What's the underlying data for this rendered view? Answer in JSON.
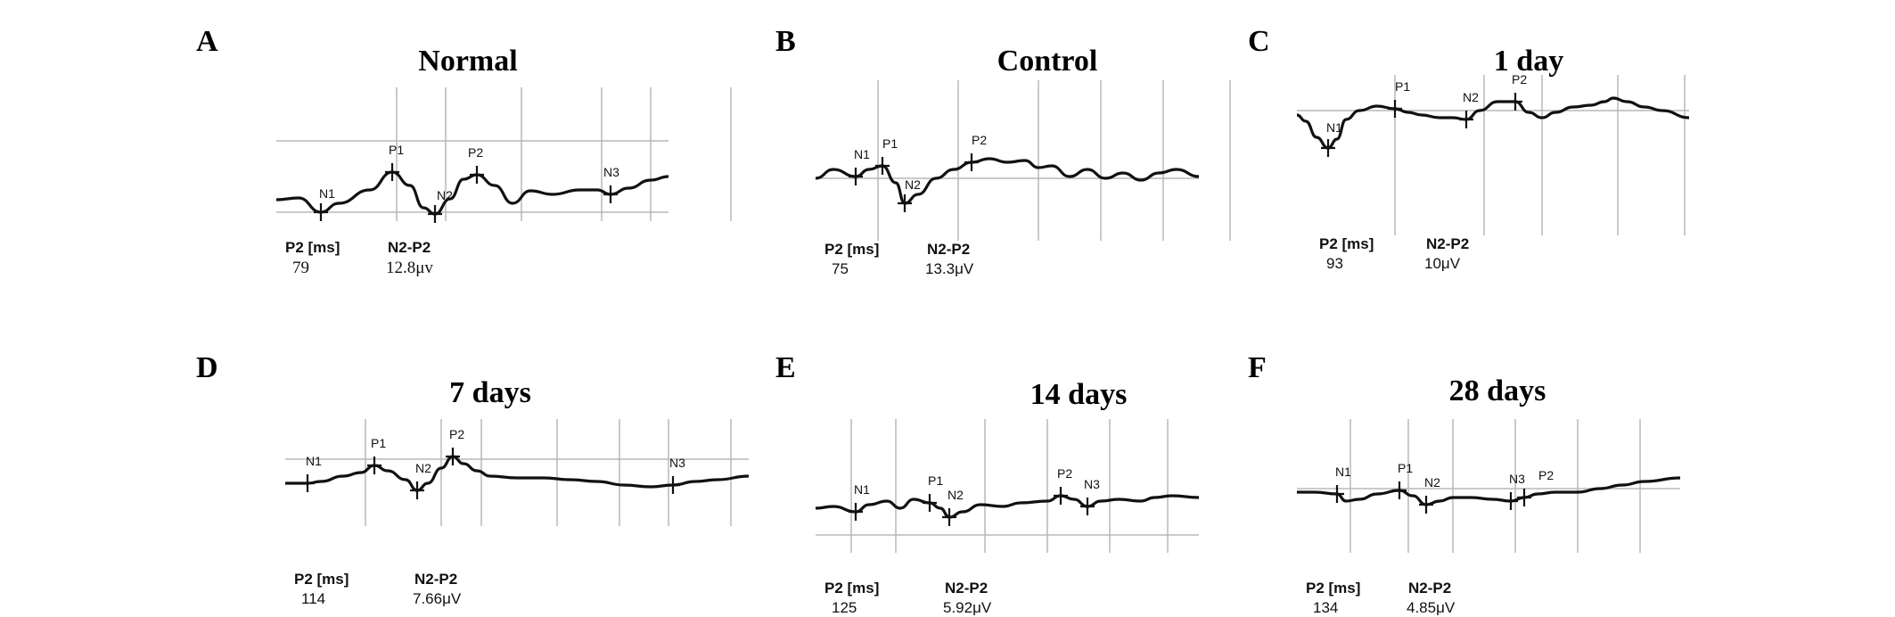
{
  "chart_data": [
    {
      "type": "line",
      "panel": "A",
      "title": "Normal",
      "peaks": [
        {
          "label": "N1"
        },
        {
          "label": "P1"
        },
        {
          "label": "N2"
        },
        {
          "label": "P2"
        },
        {
          "label": "N3"
        }
      ],
      "p2_latency_label": "P2 [ms]",
      "p2_latency": "79",
      "amplitude_label": "N2-P2",
      "amplitude": "12.8μv"
    },
    {
      "type": "line",
      "panel": "B",
      "title": "Control",
      "peaks": [
        {
          "label": "N1"
        },
        {
          "label": "P1"
        },
        {
          "label": "N2"
        },
        {
          "label": "P2"
        }
      ],
      "p2_latency_label": "P2 [ms]",
      "p2_latency": "75",
      "amplitude_label": "N2-P2",
      "amplitude": "13.3μV"
    },
    {
      "type": "line",
      "panel": "C",
      "title": "1 day",
      "peaks": [
        {
          "label": "N1"
        },
        {
          "label": "P1"
        },
        {
          "label": "N2"
        },
        {
          "label": "P2"
        }
      ],
      "p2_latency_label": "P2 [ms]",
      "p2_latency": "93",
      "amplitude_label": "N2-P2",
      "amplitude": "10μV"
    },
    {
      "type": "line",
      "panel": "D",
      "title": "7 days",
      "peaks": [
        {
          "label": "N1"
        },
        {
          "label": "P1"
        },
        {
          "label": "N2"
        },
        {
          "label": "P2"
        },
        {
          "label": "N3"
        }
      ],
      "p2_latency_label": "P2 [ms]",
      "p2_latency": "114",
      "amplitude_label": "N2-P2",
      "amplitude": "7.66μV"
    },
    {
      "type": "line",
      "panel": "E",
      "title": "14 days",
      "peaks": [
        {
          "label": "N1"
        },
        {
          "label": "P1"
        },
        {
          "label": "N2"
        },
        {
          "label": "P2"
        },
        {
          "label": "N3"
        }
      ],
      "p2_latency_label": "P2 [ms]",
      "p2_latency": "125",
      "amplitude_label": "N2-P2",
      "amplitude": "5.92μV"
    },
    {
      "type": "line",
      "panel": "F",
      "title": "28 days",
      "peaks": [
        {
          "label": "N1"
        },
        {
          "label": "P1"
        },
        {
          "label": "N2"
        },
        {
          "label": "N3"
        },
        {
          "label": "P2"
        }
      ],
      "p2_latency_label": "P2 [ms]",
      "p2_latency": "134",
      "amplitude_label": "N2-P2",
      "amplitude": "4.85μV"
    }
  ],
  "colors": {
    "trace": "#111111",
    "grid": "#b8b8b8",
    "text": "#000000"
  }
}
